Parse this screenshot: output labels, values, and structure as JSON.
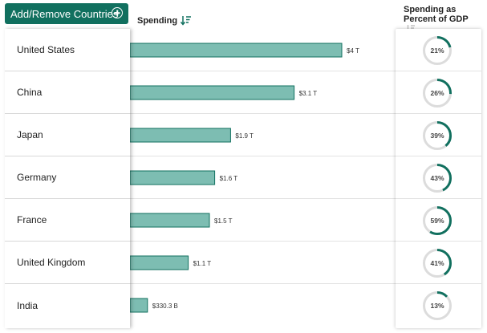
{
  "controls": {
    "add_remove_label": "Add/Remove Countries"
  },
  "headers": {
    "spending": "Spending",
    "gdp_line1": "Spending as",
    "gdp_line2": "Percent of GDP"
  },
  "colors": {
    "accent": "#11705f",
    "bar_fill": "#7dbdb2",
    "bar_stroke": "#11705f",
    "ring_bg": "#dcdcdc",
    "ring_fg": "#11705f"
  },
  "chart_data": {
    "type": "bar",
    "orientation": "horizontal",
    "categories": [
      "United States",
      "China",
      "Japan",
      "Germany",
      "France",
      "United Kingdom",
      "India"
    ],
    "series": [
      {
        "name": "Spending",
        "values": [
          4000,
          3100,
          1900,
          1600,
          1500,
          1100,
          330.3
        ],
        "unit": "billion USD"
      },
      {
        "name": "Spending as Percent of GDP",
        "values": [
          21,
          26,
          39,
          43,
          59,
          41,
          13
        ],
        "unit": "%"
      }
    ],
    "value_labels": [
      "$4 T",
      "$3.1 T",
      "$1.9 T",
      "$1.6 T",
      "$1.5 T",
      "$1.1 T",
      "$330.3 B"
    ],
    "percent_labels": [
      "21%",
      "26%",
      "39%",
      "43%",
      "59%",
      "41%",
      "13%"
    ],
    "sort": "descending by spending"
  }
}
